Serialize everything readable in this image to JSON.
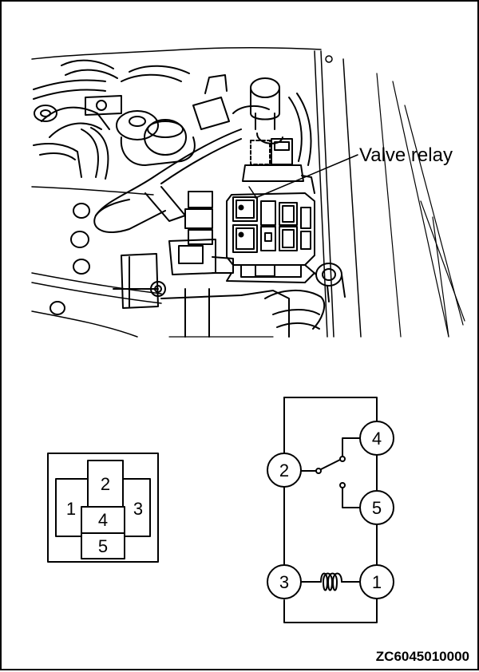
{
  "callout": {
    "label": "Valve relay"
  },
  "connector": {
    "pins": [
      "2",
      "1",
      "3",
      "4",
      "5"
    ]
  },
  "circuit": {
    "terminals": [
      "2",
      "4",
      "5",
      "3",
      "1"
    ]
  },
  "figure_code": "ZC6045010000"
}
